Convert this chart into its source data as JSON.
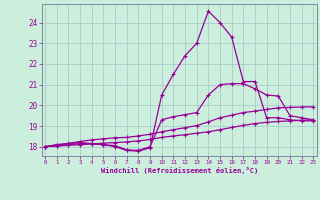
{
  "xlabel": "Windchill (Refroidissement éolien,°C)",
  "bg_color": "#cceedd",
  "grid_color": "#aacccc",
  "line_color": "#990099",
  "spine_color": "#777799",
  "x_ticks": [
    0,
    1,
    2,
    3,
    4,
    5,
    6,
    7,
    8,
    9,
    10,
    11,
    12,
    13,
    14,
    15,
    16,
    17,
    18,
    19,
    20,
    21,
    22,
    23
  ],
  "y_ticks": [
    18,
    19,
    20,
    21,
    22,
    23,
    24
  ],
  "xlim": [
    -0.3,
    23.3
  ],
  "ylim": [
    17.55,
    24.9
  ],
  "series": [
    [
      18.0,
      18.1,
      18.15,
      18.2,
      18.15,
      18.1,
      18.0,
      17.82,
      17.78,
      17.95,
      20.5,
      21.5,
      22.4,
      23.0,
      24.55,
      24.0,
      23.3,
      21.15,
      21.15,
      19.4,
      19.4,
      19.3,
      19.25,
      19.25
    ],
    [
      18.0,
      18.05,
      18.1,
      18.15,
      18.15,
      18.1,
      18.05,
      17.85,
      17.82,
      18.0,
      19.3,
      19.45,
      19.55,
      19.65,
      20.5,
      21.0,
      21.05,
      21.05,
      20.8,
      20.5,
      20.45,
      19.5,
      19.4,
      19.3
    ],
    [
      18.0,
      18.08,
      18.16,
      18.25,
      18.33,
      18.38,
      18.43,
      18.45,
      18.52,
      18.6,
      18.72,
      18.82,
      18.92,
      19.02,
      19.2,
      19.4,
      19.52,
      19.65,
      19.72,
      19.8,
      19.88,
      19.9,
      19.92,
      19.93
    ],
    [
      18.0,
      18.03,
      18.07,
      18.1,
      18.13,
      18.17,
      18.2,
      18.23,
      18.28,
      18.35,
      18.45,
      18.52,
      18.58,
      18.65,
      18.72,
      18.82,
      18.93,
      19.03,
      19.12,
      19.18,
      19.22,
      19.25,
      19.28,
      19.3
    ]
  ]
}
